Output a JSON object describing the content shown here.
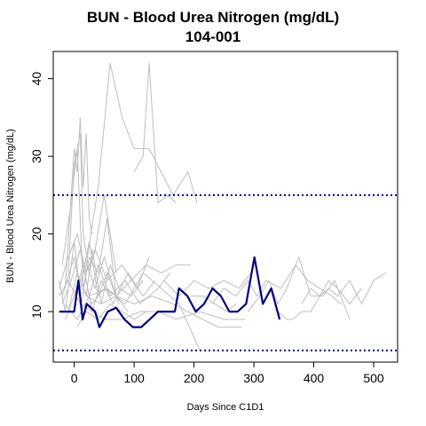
{
  "chart_data": {
    "type": "line",
    "title": "BUN - Blood Urea Nitrogen (mg/dL)",
    "subtitle": "104-001",
    "xlabel": "Days Since C1D1",
    "ylabel": "BUN - Blood Urea Nitrogen (mg/dL)",
    "xlim": [
      -35,
      540
    ],
    "ylim": [
      3.5,
      43.5
    ],
    "x_ticks": [
      0,
      100,
      200,
      300,
      400,
      500
    ],
    "y_ticks": [
      10,
      20,
      30,
      40
    ],
    "grid": false,
    "legend": "none",
    "reference_lines": [
      {
        "y": 25,
        "style": "dotted",
        "color": "#00008B"
      },
      {
        "y": 5,
        "style": "dotted",
        "color": "#00008B"
      }
    ],
    "highlight_series": {
      "color": "#000080",
      "x": [
        -25,
        0,
        7,
        14,
        21,
        28,
        35,
        42,
        49,
        56,
        70,
        84,
        98,
        112,
        126,
        140,
        154,
        168,
        175,
        189,
        203,
        217,
        231,
        245,
        259,
        273,
        287,
        301,
        315,
        329,
        343
      ],
      "y": [
        10,
        10,
        14,
        9,
        11,
        10.5,
        10,
        8,
        9,
        10,
        10.5,
        9,
        8,
        8,
        9,
        10,
        10,
        10,
        13,
        12,
        10,
        11,
        13,
        12,
        10,
        10,
        11,
        17,
        11,
        13,
        9
      ]
    },
    "background_series": [
      {
        "color": "#bebebe",
        "x": [
          0,
          10,
          20,
          40,
          60,
          80,
          100,
          125,
          145,
          165,
          190,
          205
        ],
        "y": [
          12,
          14,
          16,
          26,
          42,
          35,
          31,
          31,
          28,
          25,
          28,
          24
        ]
      },
      {
        "color": "#bebebe",
        "x": [
          100,
          115,
          125,
          140,
          155,
          170
        ],
        "y": [
          28,
          30,
          42,
          24,
          25,
          24
        ]
      },
      {
        "color": "#bebebe",
        "x": [
          -20,
          -5,
          5,
          15,
          25,
          40,
          55,
          70,
          90
        ],
        "y": [
          16,
          24,
          31,
          13,
          17,
          15,
          22,
          12,
          10
        ]
      },
      {
        "color": "#bebebe",
        "x": [
          -10,
          0,
          10,
          15,
          25,
          35,
          50,
          70
        ],
        "y": [
          15,
          29,
          33,
          20,
          15,
          18,
          25,
          15
        ]
      },
      {
        "color": "#bebebe",
        "x": [
          -15,
          0,
          5,
          10,
          15,
          20,
          25,
          30
        ],
        "y": [
          13,
          31,
          28,
          35,
          26,
          33,
          22,
          20
        ]
      },
      {
        "color": "#bebebe",
        "x": [
          -25,
          -10,
          5,
          20,
          35,
          55,
          80,
          105,
          125
        ],
        "y": [
          13,
          17,
          20,
          15,
          18,
          14,
          16,
          13,
          17
        ]
      },
      {
        "color": "#bebebe",
        "x": [
          -20,
          -5,
          10,
          25,
          40,
          60,
          85,
          110,
          140,
          160
        ],
        "y": [
          11,
          14,
          18,
          12,
          16,
          12,
          14,
          11,
          13,
          15
        ]
      },
      {
        "color": "#bebebe",
        "x": [
          -15,
          0,
          15,
          30,
          45,
          65,
          90,
          115,
          135
        ],
        "y": [
          9,
          12,
          16,
          10,
          14,
          11,
          15,
          12,
          14
        ]
      },
      {
        "color": "#bebebe",
        "x": [
          -25,
          -15,
          0,
          12,
          22,
          35,
          50,
          70
        ],
        "y": [
          14,
          10,
          19,
          11,
          16,
          13,
          17,
          12
        ]
      },
      {
        "color": "#bebebe",
        "x": [
          -10,
          5,
          20,
          30,
          45,
          60,
          75,
          95,
          115
        ],
        "y": [
          10,
          15,
          12,
          18,
          11,
          16,
          13,
          12,
          14
        ]
      },
      {
        "color": "#bebebe",
        "x": [
          -20,
          0,
          10,
          25,
          40,
          55,
          75
        ],
        "y": [
          12,
          17,
          13,
          19,
          12,
          15,
          11
        ]
      },
      {
        "color": "#bebebe",
        "x": [
          0,
          15,
          30,
          50,
          70,
          95,
          120,
          145,
          170,
          195
        ],
        "y": [
          12,
          13,
          11,
          13,
          12,
          14,
          16,
          15,
          16,
          16
        ]
      },
      {
        "color": "#bebebe",
        "x": [
          20,
          45,
          70,
          100,
          130,
          165,
          190,
          215,
          240,
          265,
          280
        ],
        "y": [
          12,
          11,
          12,
          11,
          12,
          11,
          10,
          9,
          8,
          8,
          8
        ]
      },
      {
        "color": "#bebebe",
        "x": [
          -15,
          5,
          25,
          55,
          85,
          115,
          145,
          175,
          210
        ],
        "y": [
          11,
          9,
          12,
          13,
          11,
          15,
          13,
          11,
          5
        ]
      },
      {
        "color": "#bebebe",
        "x": [
          -25,
          -10,
          10,
          30,
          50,
          80,
          110,
          140,
          170,
          210,
          250,
          285
        ],
        "y": [
          12,
          14,
          11,
          10,
          9,
          9,
          10,
          10,
          9,
          10,
          9,
          9
        ]
      },
      {
        "color": "#bebebe",
        "x": [
          150,
          175,
          200,
          225,
          250,
          275,
          295
        ],
        "y": [
          14,
          12,
          14,
          13,
          14,
          13,
          15
        ]
      },
      {
        "color": "#bebebe",
        "x": [
          5,
          20,
          40,
          60,
          80,
          100,
          120
        ],
        "y": [
          8,
          10,
          9,
          11,
          10,
          9,
          10
        ]
      },
      {
        "color": "#bebebe",
        "x": [
          230,
          250,
          270,
          290,
          305,
          320,
          345,
          370,
          390,
          410,
          430,
          445
        ],
        "y": [
          11,
          13,
          12,
          14,
          12,
          14,
          13,
          16,
          14,
          13,
          12,
          11
        ]
      },
      {
        "color": "#bebebe",
        "x": [
          290,
          310,
          325,
          340,
          355,
          375,
          395,
          415,
          435,
          460
        ],
        "y": [
          10,
          12,
          14,
          11,
          13,
          17,
          12,
          12,
          14,
          9
        ]
      },
      {
        "color": "#bebebe",
        "x": [
          340,
          355,
          365,
          380,
          395,
          410,
          425,
          440,
          460,
          480,
          500,
          520
        ],
        "y": [
          10,
          9,
          9,
          10,
          10,
          12,
          13,
          12,
          14,
          11,
          14,
          15
        ]
      },
      {
        "color": "#bebebe",
        "x": [
          380,
          395,
          410,
          425,
          440,
          460,
          480
        ],
        "y": [
          11,
          13,
          12,
          14,
          13,
          11,
          13
        ]
      },
      {
        "color": "#bebebe",
        "x": [
          195,
          215,
          235,
          255,
          270
        ],
        "y": [
          12,
          12,
          11,
          10,
          11
        ]
      }
    ]
  }
}
